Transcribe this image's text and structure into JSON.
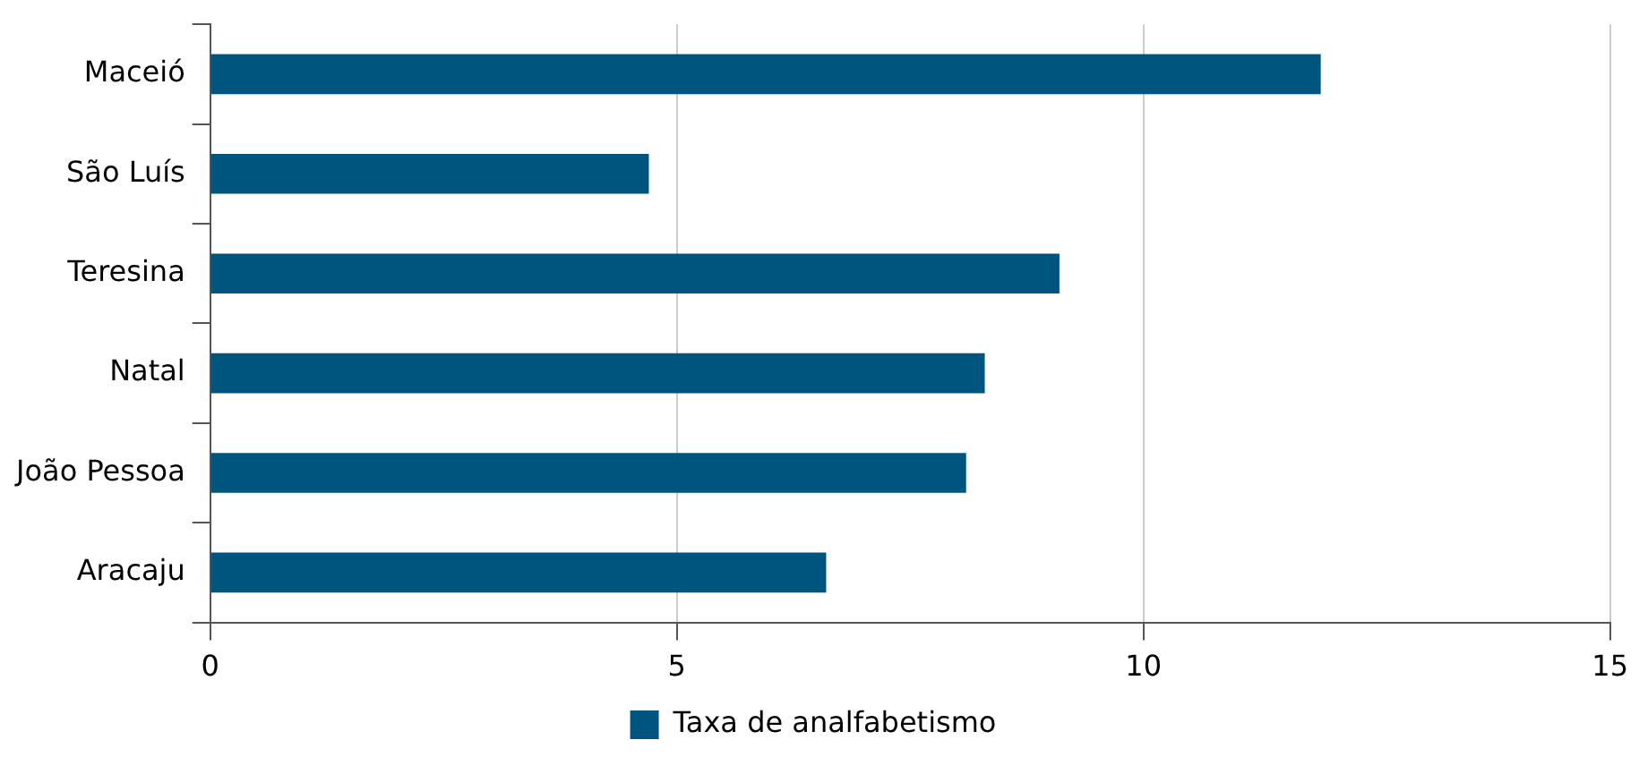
{
  "chart_data": {
    "type": "bar",
    "orientation": "horizontal",
    "categories": [
      "Maceió",
      "São Luís",
      "Teresina",
      "Natal",
      "João Pessoa",
      "Aracaju"
    ],
    "series": [
      {
        "name": "Taxa de analfabetismo",
        "color": "#00557f",
        "values": [
          11.9,
          4.7,
          9.1,
          8.3,
          8.1,
          6.6
        ]
      }
    ],
    "xlim": [
      0,
      15
    ],
    "xticks": [
      0,
      5,
      10,
      15
    ],
    "grid": "x",
    "legend": "bottom"
  }
}
